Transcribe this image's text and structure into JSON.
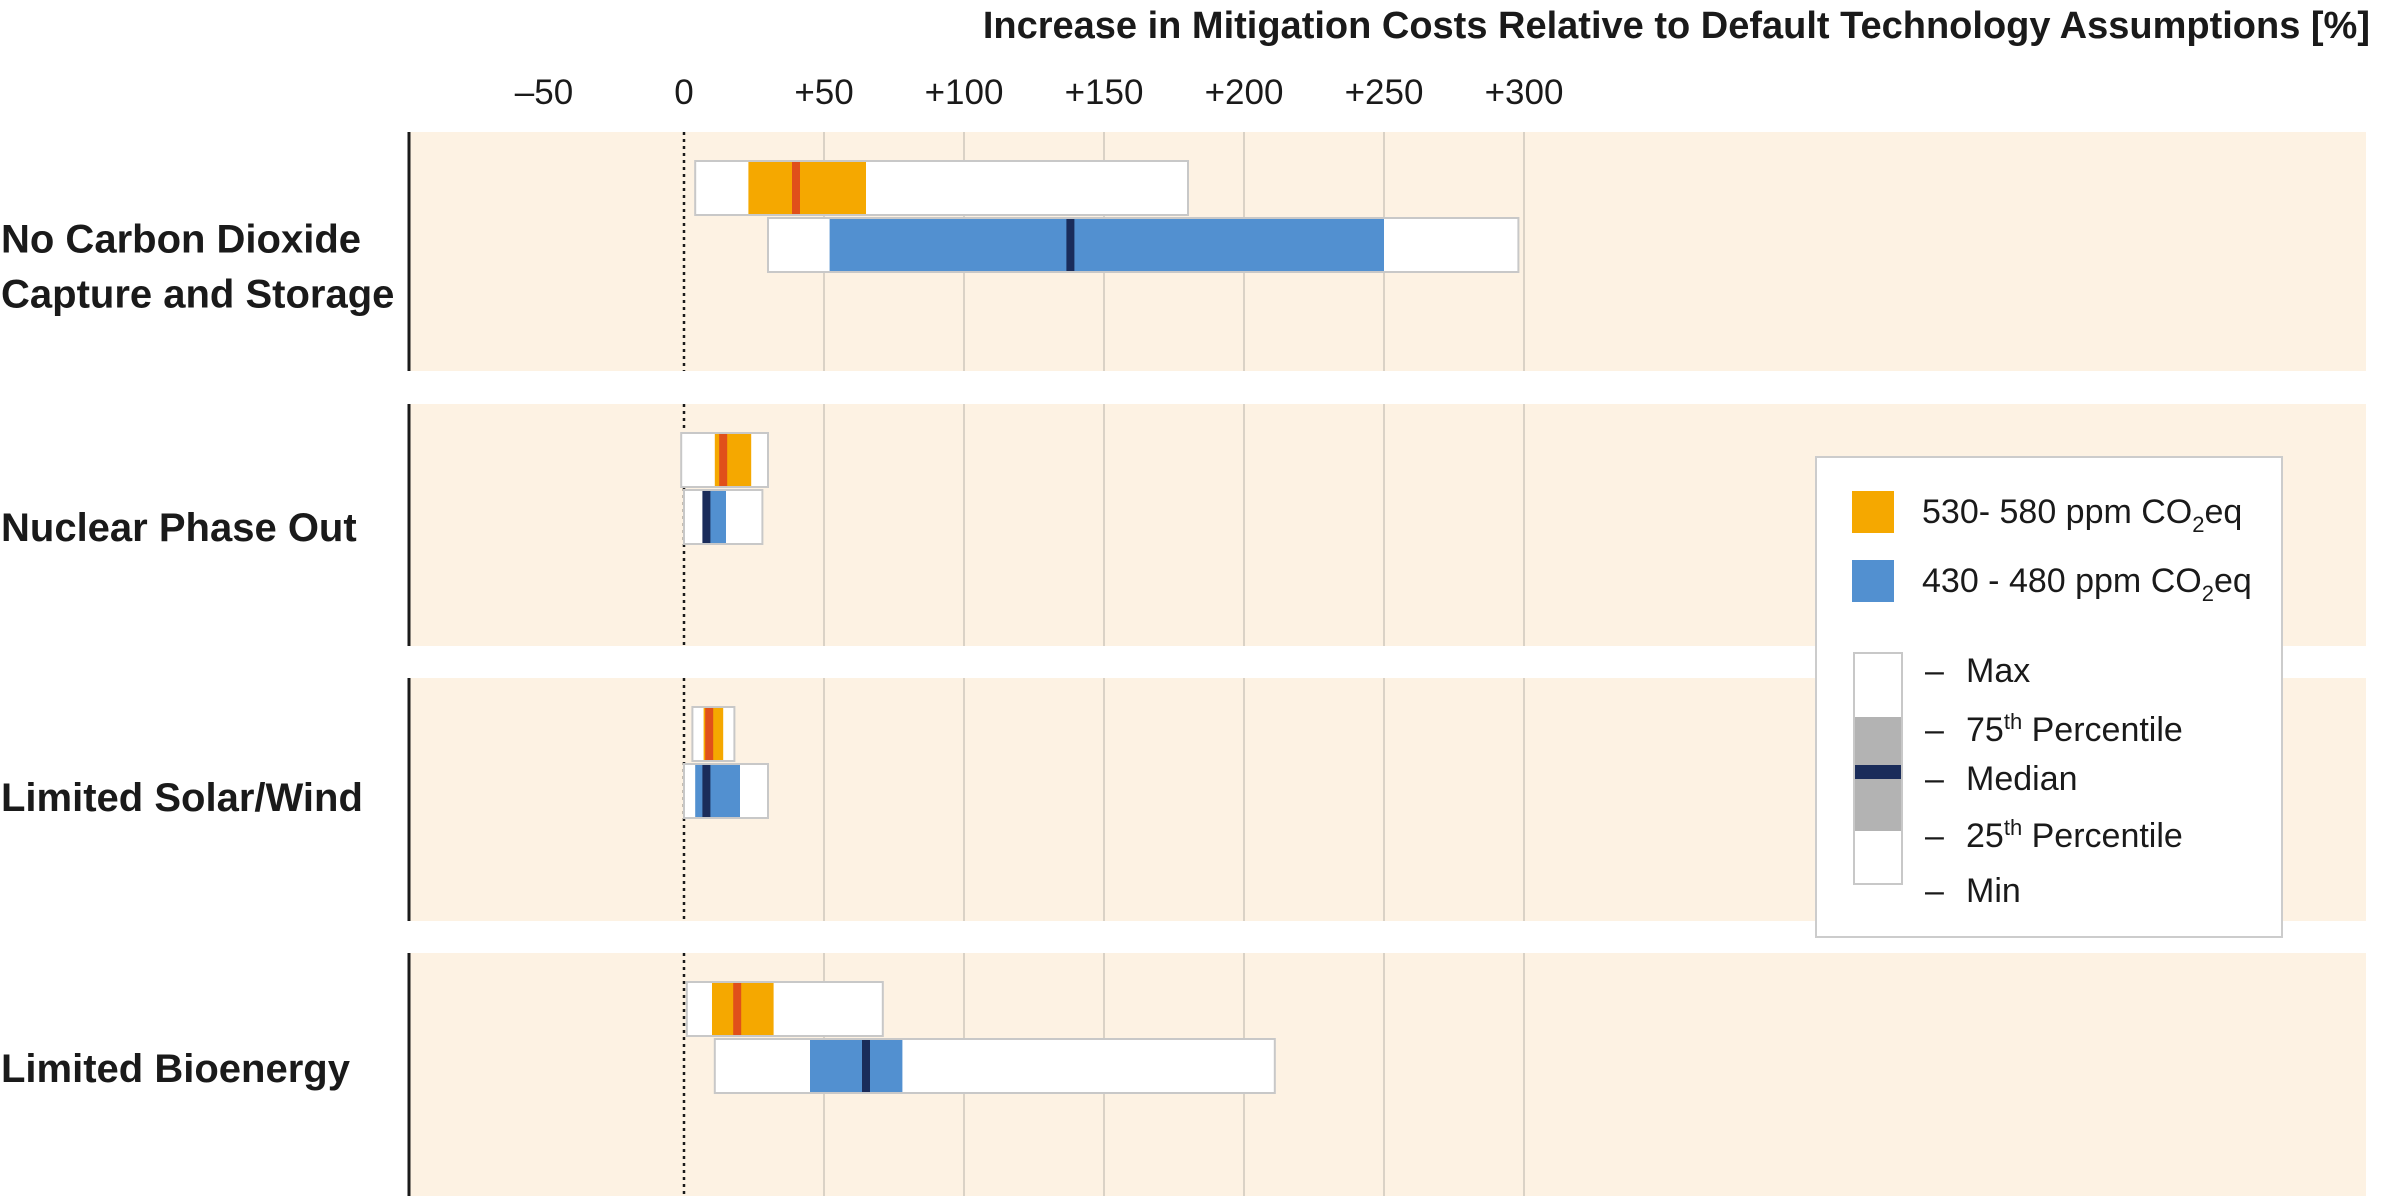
{
  "chart_data": {
    "type": "box",
    "title": "Increase in Mitigation Costs Relative to Default Technology Assumptions [%]",
    "xlim": [
      -50,
      300
    ],
    "x_ticks": [
      -50,
      0,
      50,
      100,
      150,
      200,
      250,
      300
    ],
    "x_tick_labels": [
      "–50",
      "0",
      "+50",
      "+100",
      "+150",
      "+200",
      "+250",
      "+300"
    ],
    "reference_line_x": 0,
    "grid": true,
    "legend_position": "right",
    "categories": [
      [
        "No Carbon Dioxide",
        "Capture and Storage"
      ],
      [
        "Nuclear Phase Out"
      ],
      [
        "Limited Solar/Wind"
      ],
      [
        "Limited Bioenergy"
      ]
    ],
    "series": [
      {
        "name": "530- 580  ppm CO₂eq",
        "name_parts": [
          "530- 580  ppm CO",
          "2",
          "eq"
        ],
        "color": "#f5a800",
        "median_color": "#e0501a",
        "boxes": [
          {
            "min": 4,
            "q1": 23,
            "median": 40,
            "q3": 65,
            "max": 180
          },
          {
            "min": -1,
            "q1": 11,
            "median": 14,
            "q3": 24,
            "max": 30
          },
          {
            "min": 3,
            "q1": 7,
            "median": 9,
            "q3": 14,
            "max": 18
          },
          {
            "min": 1,
            "q1": 10,
            "median": 19,
            "q3": 32,
            "max": 71
          }
        ]
      },
      {
        "name": "430 - 480 ppm CO₂eq",
        "name_parts": [
          "430 - 480 ppm CO",
          "2",
          "eq"
        ],
        "color": "#5290d0",
        "median_color": "#1a2c5a",
        "boxes": [
          {
            "min": 30,
            "q1": 52,
            "median": 138,
            "q3": 250,
            "max": 298
          },
          {
            "min": 0,
            "q1": 7,
            "median": 8,
            "q3": 15,
            "max": 28
          },
          {
            "min": 0,
            "q1": 4,
            "median": 8,
            "q3": 20,
            "max": 30
          },
          {
            "min": 11,
            "q1": 45,
            "median": 65,
            "q3": 78,
            "max": 211
          }
        ]
      }
    ],
    "legend_key": {
      "max": "Max",
      "p75": [
        "75",
        "th",
        " Percentile"
      ],
      "median": "Median",
      "p25": [
        "25",
        "th",
        " Percentile"
      ],
      "min": "Min",
      "dash": "–"
    },
    "colors": {
      "panel_bg": "#fdf2e3",
      "grid": "#cfc7bc",
      "box_outline": "#c8c8c8",
      "key_gray": "#b3b3b3",
      "key_median": "#1a2c5a"
    }
  }
}
